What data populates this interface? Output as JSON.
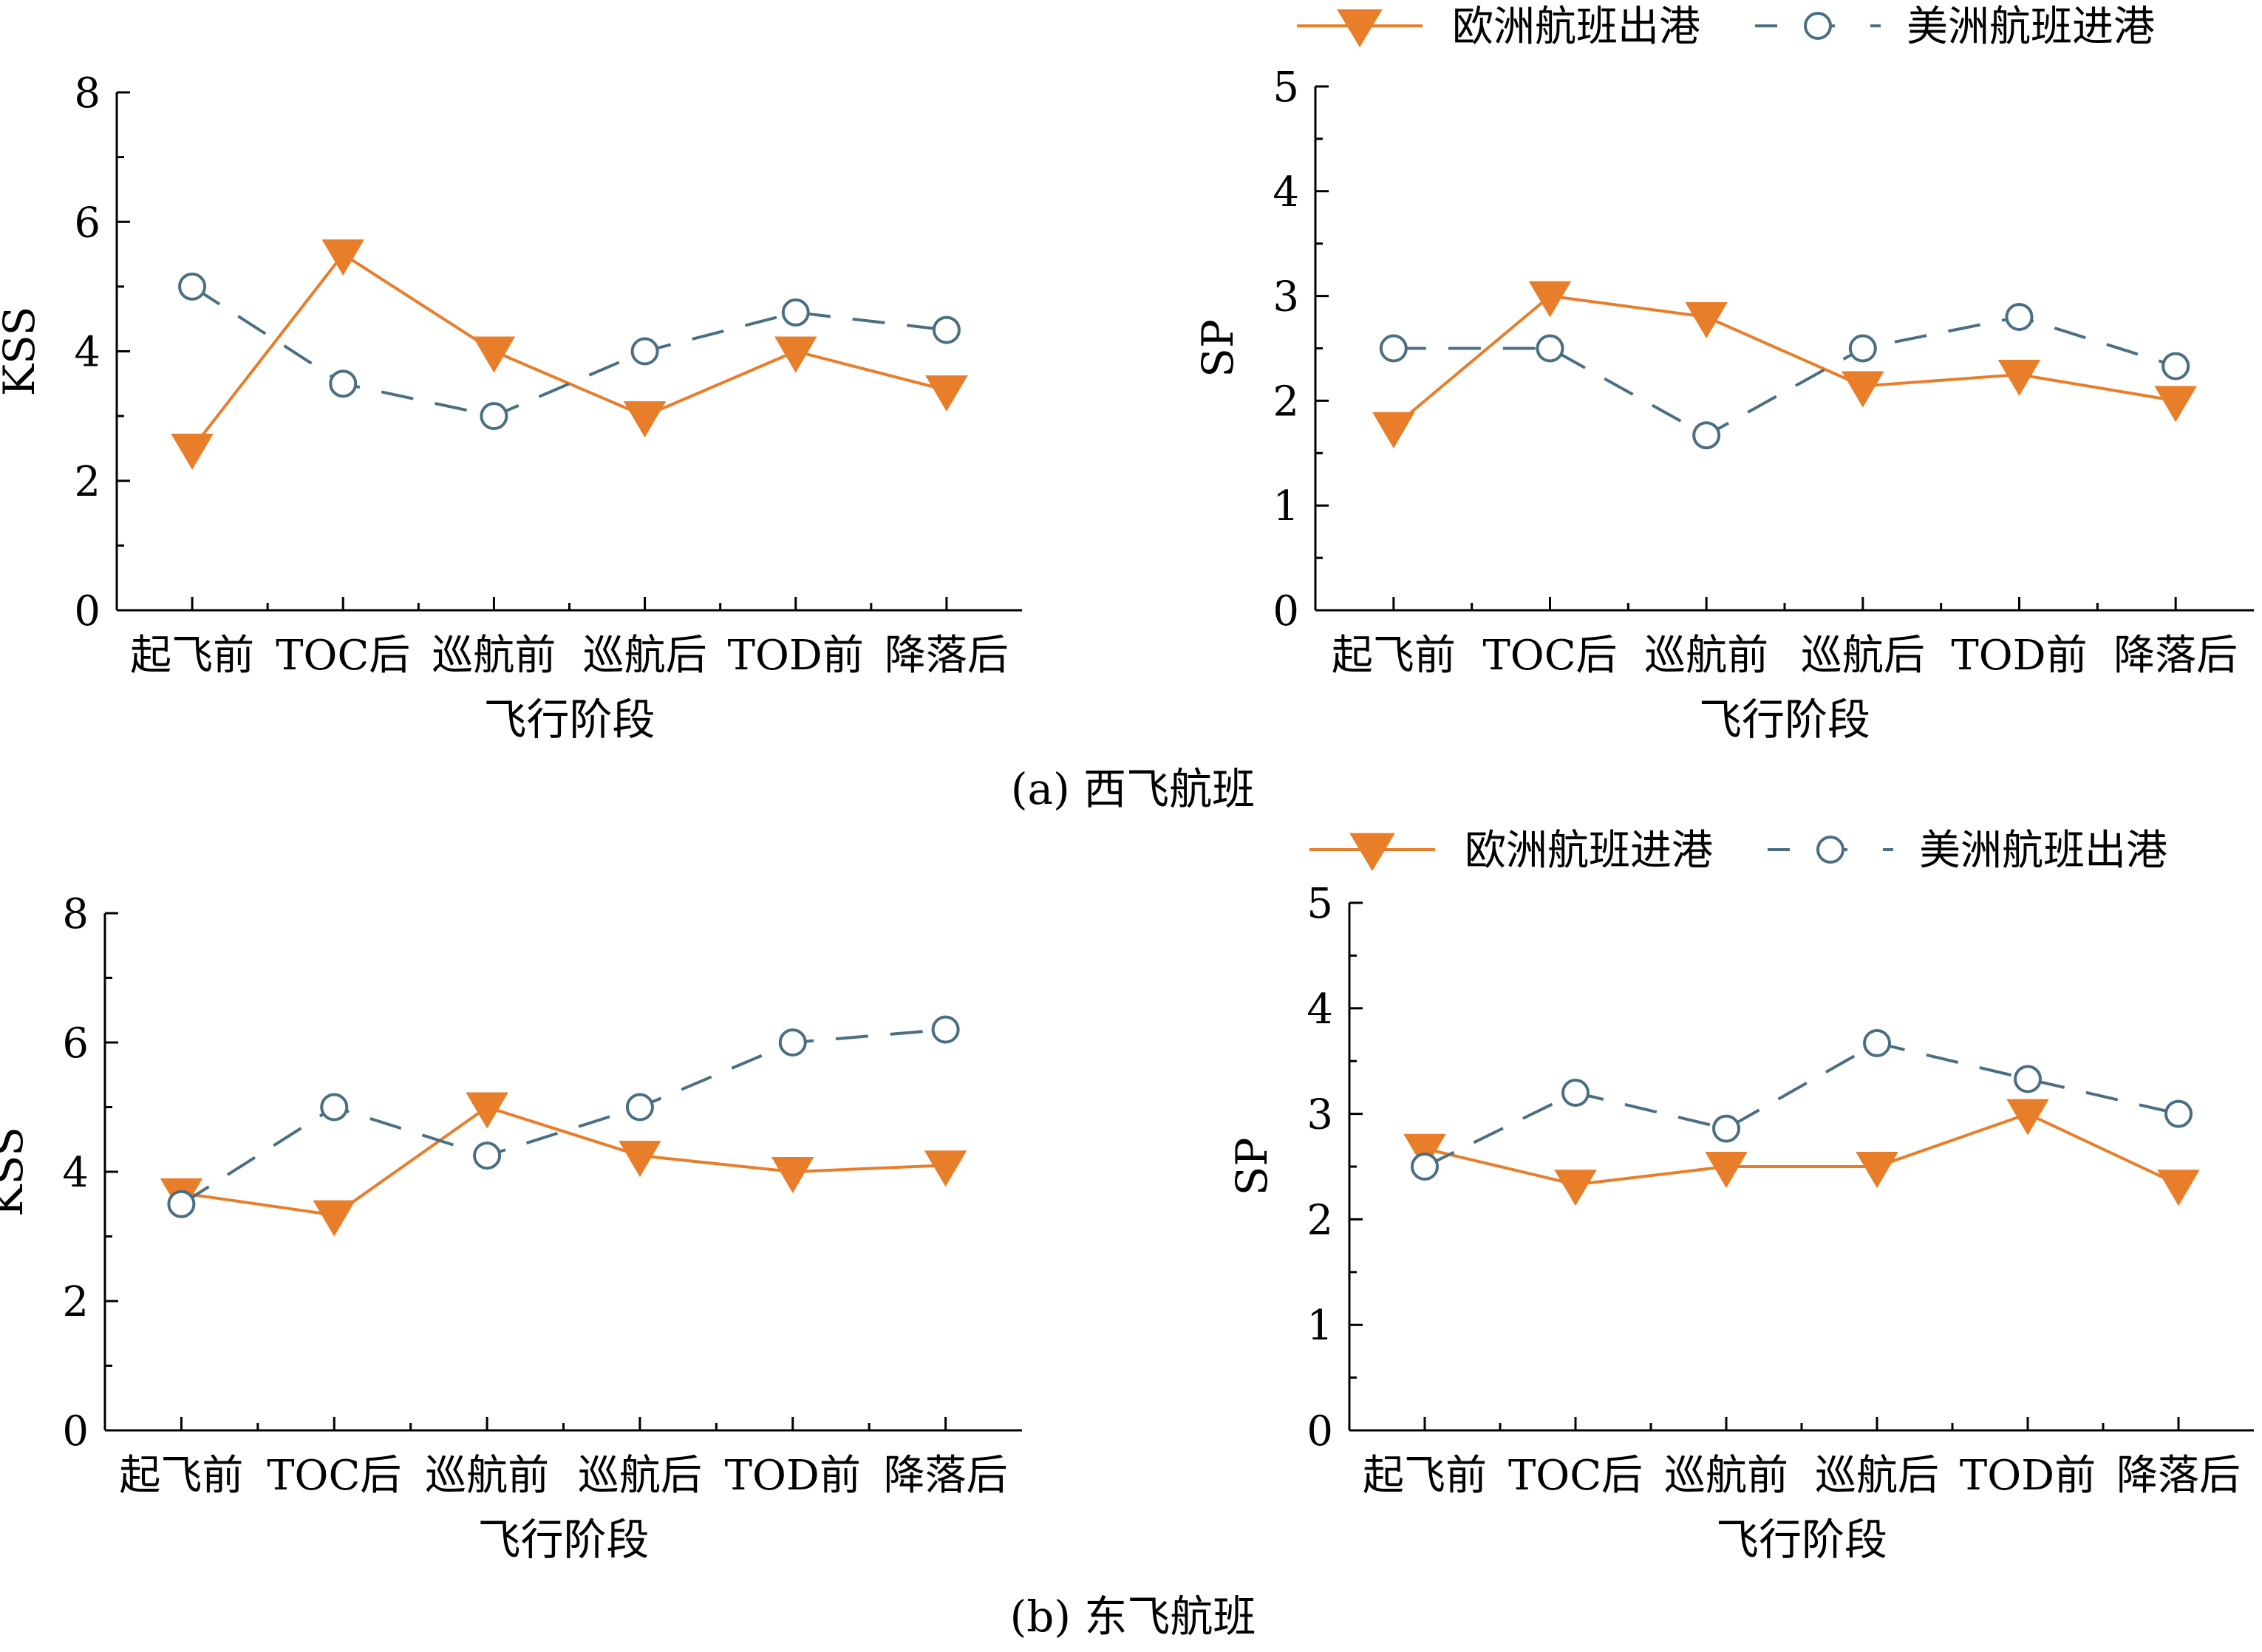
{
  "figure": {
    "captions": [
      "(a) 西飞航班",
      "(b) 东飞航班"
    ]
  },
  "colors": {
    "europe": "#E87D2A",
    "america": "#4A6F82"
  },
  "legends": [
    {
      "europe": "欧洲航班出港",
      "america": "美洲航班进港"
    },
    {
      "europe": "欧洲航班进港",
      "america": "美洲航班出港"
    }
  ],
  "chart_data": [
    {
      "type": "line",
      "panel": "a-left",
      "categories": [
        "起飞前",
        "TOC后",
        "巡航前",
        "巡航后",
        "TOD前",
        "降落后"
      ],
      "xlabel": "飞行阶段",
      "ylabel": "KSS",
      "ylim": [
        0,
        8
      ],
      "yticks": [
        0,
        2,
        4,
        6,
        8
      ],
      "series": [
        {
          "key": "europe",
          "name": "欧洲航班出港",
          "marker": "triangle-down",
          "line": "solid",
          "values": [
            2.5,
            5.5,
            4.0,
            3.0,
            4.0,
            3.4
          ]
        },
        {
          "key": "america",
          "name": "美洲航班进港",
          "marker": "circle-open",
          "line": "dashed",
          "values": [
            5.0,
            3.5,
            3.0,
            4.0,
            4.6,
            4.33
          ]
        }
      ]
    },
    {
      "type": "line",
      "panel": "a-right",
      "categories": [
        "起飞前",
        "TOC后",
        "巡航前",
        "巡航后",
        "TOD前",
        "降落后"
      ],
      "xlabel": "飞行阶段",
      "ylabel": "SP",
      "ylim": [
        0,
        5
      ],
      "yticks": [
        0,
        1,
        2,
        3,
        4,
        5
      ],
      "series": [
        {
          "key": "europe",
          "name": "欧洲航班出港",
          "marker": "triangle-down",
          "line": "solid",
          "values": [
            1.75,
            3.0,
            2.8,
            2.14,
            2.25,
            2.0
          ]
        },
        {
          "key": "america",
          "name": "美洲航班进港",
          "marker": "circle-open",
          "line": "dashed",
          "values": [
            2.5,
            2.5,
            1.67,
            2.5,
            2.8,
            2.33
          ]
        }
      ]
    },
    {
      "type": "line",
      "panel": "b-left",
      "categories": [
        "起飞前",
        "TOC后",
        "巡航前",
        "巡航后",
        "TOD前",
        "降落后"
      ],
      "xlabel": "飞行阶段",
      "ylabel": "KSS",
      "ylim": [
        0,
        8
      ],
      "yticks": [
        0,
        2,
        4,
        6,
        8
      ],
      "series": [
        {
          "key": "europe",
          "name": "欧洲航班进港",
          "marker": "triangle-down",
          "line": "solid",
          "values": [
            3.67,
            3.33,
            5.0,
            4.25,
            4.0,
            4.1
          ]
        },
        {
          "key": "america",
          "name": "美洲航班出港",
          "marker": "circle-open",
          "line": "dashed",
          "values": [
            3.5,
            5.0,
            4.25,
            5.0,
            6.0,
            6.2
          ]
        }
      ]
    },
    {
      "type": "line",
      "panel": "b-right",
      "categories": [
        "起飞前",
        "TOC后",
        "巡航前",
        "巡航后",
        "TOD前",
        "降落后"
      ],
      "xlabel": "飞行阶段",
      "ylabel": "SP",
      "ylim": [
        0,
        5
      ],
      "yticks": [
        0,
        1,
        2,
        3,
        4,
        5
      ],
      "series": [
        {
          "key": "europe",
          "name": "欧洲航班进港",
          "marker": "triangle-down",
          "line": "solid",
          "values": [
            2.67,
            2.33,
            2.5,
            2.5,
            3.0,
            2.33
          ]
        },
        {
          "key": "america",
          "name": "美洲航班出港",
          "marker": "circle-open",
          "line": "dashed",
          "values": [
            2.5,
            3.2,
            2.86,
            3.67,
            3.33,
            3.0
          ]
        }
      ]
    }
  ]
}
